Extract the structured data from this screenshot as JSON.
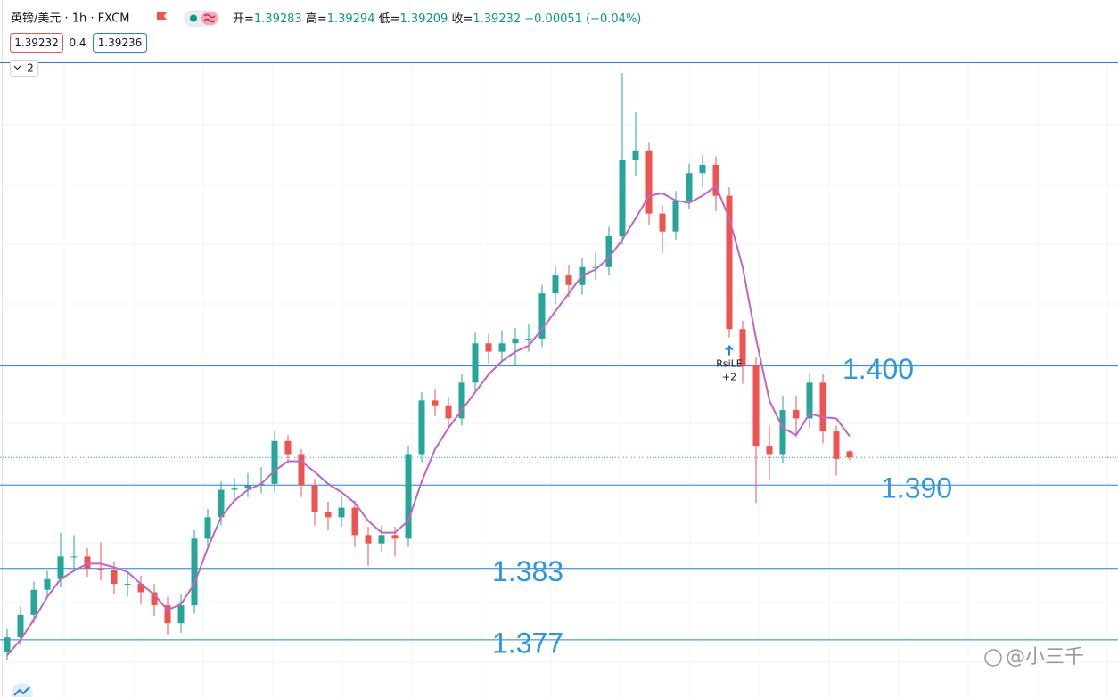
{
  "header": {
    "symbol": "英镑/美元 · 1h · FXCM",
    "ohlc_labels": [
      "开=",
      "高=",
      "低=",
      "收="
    ],
    "change": "−0.00051 (−0.04%)",
    "bid": 1.39232,
    "spread": 0.4,
    "ask": 1.39236,
    "collapse": "2"
  },
  "chart_data": {
    "type": "candlestick",
    "candles": {
      "open": [
        1.376,
        1.3772,
        1.3791,
        1.3812,
        1.3821,
        1.384,
        1.384,
        1.383,
        1.3829,
        1.3817,
        1.3817,
        1.381,
        1.3799,
        1.3784,
        1.3799,
        1.3855,
        1.3873,
        1.3896,
        1.3897,
        1.39,
        1.3901,
        1.3937,
        1.3926,
        1.39,
        1.3877,
        1.3873,
        1.3881,
        1.3858,
        1.3851,
        1.3858,
        1.3855,
        1.3926,
        1.3971,
        1.3967,
        1.3956,
        1.3986,
        1.4019,
        1.4012,
        1.4019,
        1.4023,
        1.4023,
        1.4061,
        1.4076,
        1.4068,
        1.4083,
        1.4083,
        1.4109,
        1.4173,
        1.4181,
        1.4128,
        1.4113,
        1.4139,
        1.4162,
        1.4169,
        1.4143,
        1.4031,
        1.4001,
        1.3933,
        1.3926,
        1.3963,
        1.3956,
        1.3986,
        1.3945,
        1.39283
      ],
      "high": [
        1.3779,
        1.3798,
        1.3819,
        1.3828,
        1.386,
        1.3858,
        1.3847,
        1.3852,
        1.3836,
        1.3826,
        1.3824,
        1.3817,
        1.3806,
        1.3808,
        1.3862,
        1.388,
        1.3903,
        1.3906,
        1.391,
        1.3915,
        1.3945,
        1.3942,
        1.393,
        1.3905,
        1.3886,
        1.389,
        1.3887,
        1.3865,
        1.3866,
        1.3865,
        1.3933,
        1.3978,
        1.398,
        1.3974,
        1.3993,
        1.4028,
        1.4027,
        1.403,
        1.4032,
        1.4035,
        1.4068,
        1.4084,
        1.4085,
        1.4091,
        1.4095,
        1.4117,
        1.4246,
        1.4213,
        1.4188,
        1.4135,
        1.4147,
        1.417,
        1.4177,
        1.4176,
        1.415,
        1.4038,
        1.4008,
        1.395,
        1.3975,
        1.3975,
        1.3993,
        1.3993,
        1.395,
        1.39294
      ],
      "low": [
        1.3753,
        1.3765,
        1.3784,
        1.3805,
        1.3814,
        1.3828,
        1.3823,
        1.382,
        1.3808,
        1.3806,
        1.38,
        1.379,
        1.3774,
        1.3776,
        1.3792,
        1.3848,
        1.3866,
        1.3889,
        1.389,
        1.3893,
        1.3894,
        1.3918,
        1.389,
        1.3866,
        1.3862,
        1.3865,
        1.3848,
        1.3832,
        1.3844,
        1.384,
        1.3848,
        1.3919,
        1.3958,
        1.3948,
        1.395,
        1.3979,
        1.4002,
        1.4004,
        1.4,
        1.4012,
        1.4016,
        1.4052,
        1.4058,
        1.406,
        1.4072,
        1.4076,
        1.4102,
        1.416,
        1.4118,
        1.4095,
        1.4106,
        1.4132,
        1.415,
        1.413,
        1.4024,
        1.3985,
        1.3885,
        1.3905,
        1.3918,
        1.394,
        1.3948,
        1.3935,
        1.3908,
        1.39209
      ],
      "close": [
        1.3772,
        1.3791,
        1.3812,
        1.3821,
        1.384,
        1.384,
        1.383,
        1.3829,
        1.3817,
        1.3817,
        1.381,
        1.3799,
        1.3784,
        1.3799,
        1.3855,
        1.3873,
        1.3896,
        1.3897,
        1.39,
        1.3901,
        1.3937,
        1.3926,
        1.39,
        1.3877,
        1.3873,
        1.3881,
        1.3858,
        1.3851,
        1.3858,
        1.3855,
        1.3926,
        1.3971,
        1.3967,
        1.3956,
        1.3986,
        1.4019,
        1.4012,
        1.4019,
        1.4023,
        1.4023,
        1.4061,
        1.4076,
        1.4068,
        1.4083,
        1.4083,
        1.4109,
        1.4173,
        1.4181,
        1.4128,
        1.4113,
        1.4139,
        1.4162,
        1.4169,
        1.4143,
        1.4031,
        1.4001,
        1.3933,
        1.3926,
        1.3963,
        1.3956,
        1.3986,
        1.3945,
        1.3922,
        1.39232
      ]
    },
    "up_color": "#26a69a",
    "down_color": "#ef5350",
    "ma": {
      "color": "#c064c8",
      "values": [
        1.3757,
        1.377,
        1.3787,
        1.3806,
        1.3821,
        1.3828,
        1.3834,
        1.3834,
        1.3831,
        1.3827,
        1.3817,
        1.3808,
        1.3795,
        1.38,
        1.3817,
        1.3847,
        1.3873,
        1.3887,
        1.3896,
        1.3901,
        1.3912,
        1.392,
        1.392,
        1.3911,
        1.3901,
        1.3894,
        1.3885,
        1.387,
        1.386,
        1.386,
        1.387,
        1.3903,
        1.393,
        1.3948,
        1.3963,
        1.3978,
        1.3993,
        1.4004,
        1.4012,
        1.4017,
        1.4031,
        1.4046,
        1.4061,
        1.4076,
        1.4081,
        1.4091,
        1.4106,
        1.4124,
        1.4143,
        1.4145,
        1.4139,
        1.4137,
        1.4143,
        1.4151,
        1.4124,
        1.4083,
        1.4023,
        1.3971,
        1.3948,
        1.3942,
        1.396,
        1.3957,
        1.3956,
        1.3941
      ]
    },
    "levels": [
      {
        "value": 1.4,
        "label": "1.400"
      },
      {
        "value": 1.39,
        "label": "1.390"
      },
      {
        "value": 1.383,
        "label": "1.383"
      },
      {
        "value": 1.377,
        "label": "1.377"
      }
    ],
    "level_color": "#2a7fd4",
    "ylim": [
      1.3722,
      1.4255
    ],
    "annotations": [
      "RsiLE",
      "+2"
    ],
    "watermark": "@小三千"
  }
}
